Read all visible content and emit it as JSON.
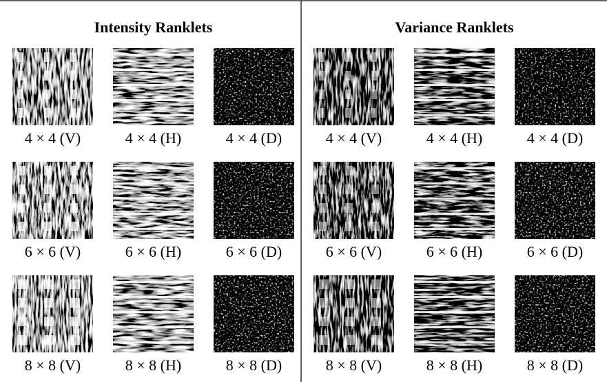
{
  "panels": [
    {
      "title": "Intensity Ranklets",
      "rows": [
        [
          "4 × 4 (V)",
          "4 × 4 (H)",
          "4 × 4 (D)"
        ],
        [
          "6 × 6 (V)",
          "6 × 6 (H)",
          "6 × 6 (D)"
        ],
        [
          "8 × 8 (V)",
          "8 × 8 (H)",
          "8 × 8 (D)"
        ]
      ]
    },
    {
      "title": "Variance Ranklets",
      "rows": [
        [
          "4 × 4 (V)",
          "4 × 4 (H)",
          "4 × 4 (D)"
        ],
        [
          "6 × 6 (V)",
          "6 × 6 (H)",
          "6 × 6 (D)"
        ],
        [
          "8 × 8 (V)",
          "8 × 8 (H)",
          "8 × 8 (D)"
        ]
      ]
    }
  ]
}
